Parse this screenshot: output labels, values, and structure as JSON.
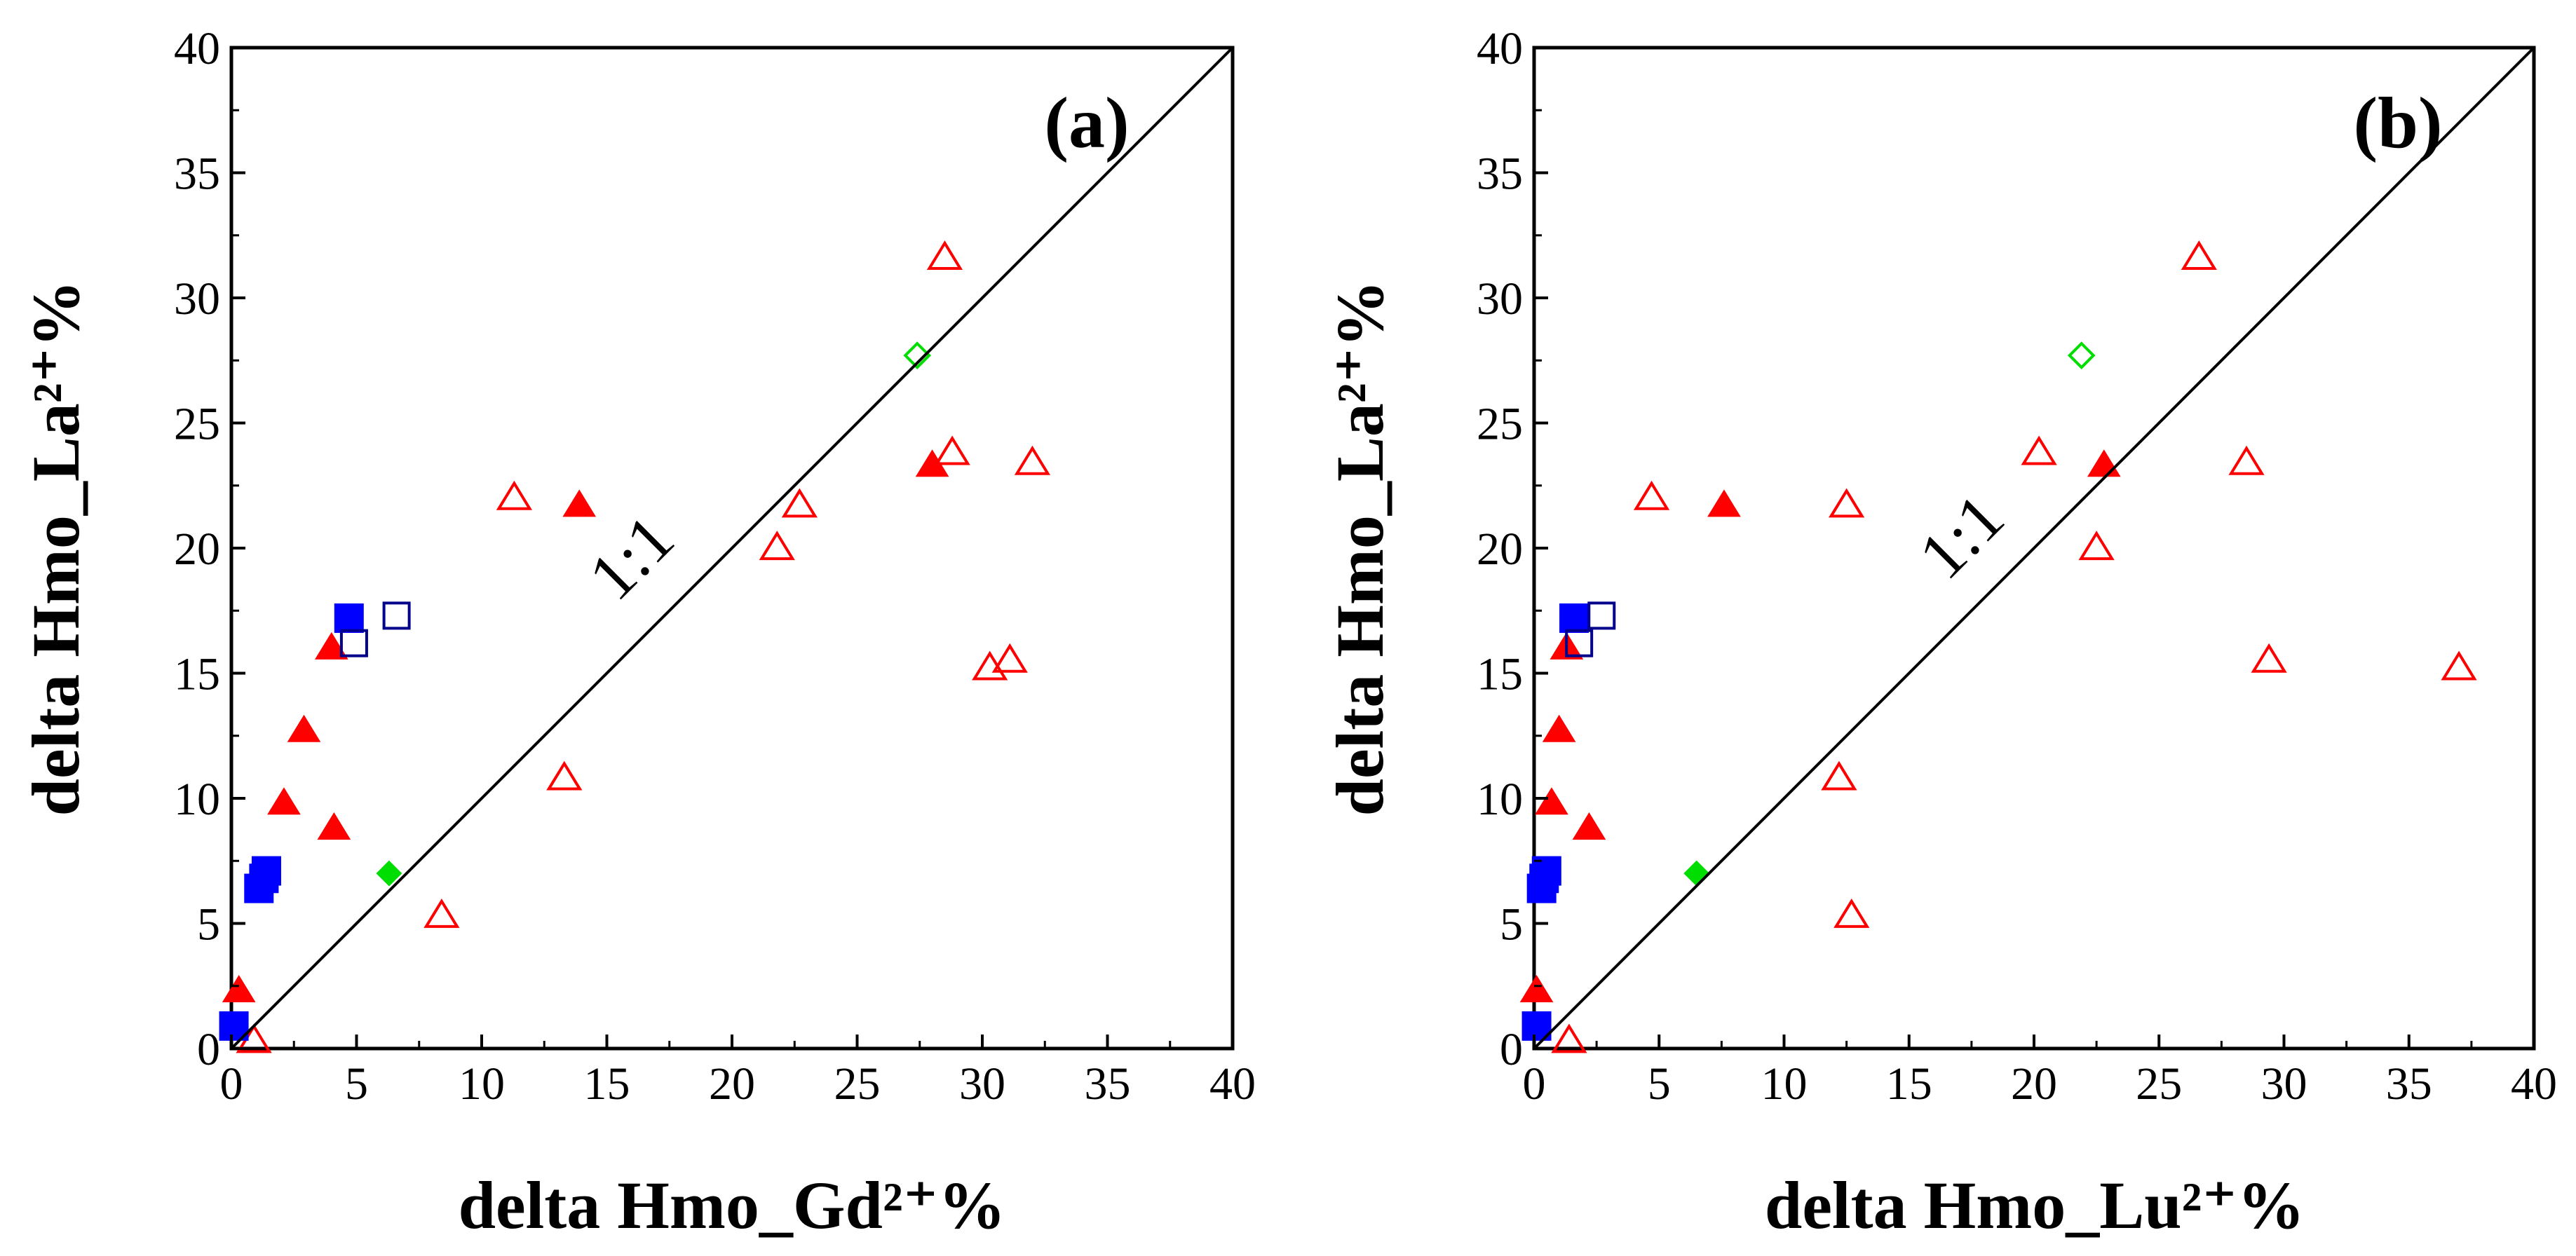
{
  "chart_data": [
    {
      "type": "scatter",
      "panel_label": "(a)",
      "xlabel": "delta Hmo_Gd²⁺%",
      "ylabel": "delta Hmo_La²⁺%",
      "xlim": [
        0,
        40
      ],
      "ylim": [
        0,
        40
      ],
      "xticks": [
        "0",
        "5",
        "10",
        "15",
        "20",
        "25",
        "30",
        "35",
        "40"
      ],
      "yticks": [
        "0",
        "5",
        "10",
        "15",
        "20",
        "25",
        "30",
        "35",
        "40"
      ],
      "reference_line": {
        "label": "1:1",
        "from": [
          0,
          0
        ],
        "to": [
          40,
          40
        ]
      },
      "series": [
        {
          "name": "filled-triangle",
          "marker": "triangle",
          "filled": true,
          "color": "#ff0000",
          "points": [
            [
              0.3,
              2.3
            ],
            [
              2.1,
              9.8
            ],
            [
              2.9,
              12.7
            ],
            [
              4.0,
              16.0
            ],
            [
              4.1,
              8.8
            ],
            [
              13.9,
              21.7
            ],
            [
              28.0,
              23.3
            ]
          ]
        },
        {
          "name": "open-triangle",
          "marker": "triangle",
          "filled": false,
          "color": "#ff0000",
          "points": [
            [
              0.9,
              0.3
            ],
            [
              8.4,
              5.3
            ],
            [
              11.3,
              22.0
            ],
            [
              13.3,
              10.8
            ],
            [
              21.8,
              20.0
            ],
            [
              22.7,
              21.7
            ],
            [
              28.5,
              31.6
            ],
            [
              28.8,
              23.8
            ],
            [
              30.3,
              15.2
            ],
            [
              31.1,
              15.5
            ],
            [
              32.0,
              23.4
            ]
          ]
        },
        {
          "name": "filled-square",
          "marker": "square",
          "filled": true,
          "color": "#0000ff",
          "points": [
            [
              0.1,
              0.9
            ],
            [
              1.1,
              6.4
            ],
            [
              1.3,
              6.8
            ],
            [
              1.4,
              7.1
            ],
            [
              4.7,
              17.2
            ]
          ]
        },
        {
          "name": "open-square",
          "marker": "square",
          "filled": false,
          "color": "#00008b",
          "points": [
            [
              4.9,
              16.2
            ],
            [
              6.6,
              17.3
            ]
          ]
        },
        {
          "name": "filled-diamond",
          "marker": "diamond",
          "filled": true,
          "color": "#00dd00",
          "points": [
            [
              6.3,
              7.0
            ]
          ]
        },
        {
          "name": "open-diamond",
          "marker": "diamond",
          "filled": false,
          "color": "#00dd00",
          "points": [
            [
              27.4,
              27.7
            ]
          ]
        }
      ]
    },
    {
      "type": "scatter",
      "panel_label": "(b)",
      "xlabel": "delta Hmo_Lu²⁺%",
      "ylabel": "delta Hmo_La²⁺%",
      "xlim": [
        0,
        40
      ],
      "ylim": [
        0,
        40
      ],
      "xticks": [
        "0",
        "5",
        "10",
        "15",
        "20",
        "25",
        "30",
        "35",
        "40"
      ],
      "yticks": [
        "0",
        "5",
        "10",
        "15",
        "20",
        "25",
        "30",
        "35",
        "40"
      ],
      "reference_line": {
        "label": "1:1",
        "from": [
          0,
          0
        ],
        "to": [
          40,
          40
        ]
      },
      "series": [
        {
          "name": "filled-triangle",
          "marker": "triangle",
          "filled": true,
          "color": "#ff0000",
          "points": [
            [
              0.1,
              2.3
            ],
            [
              0.7,
              9.8
            ],
            [
              1.0,
              12.7
            ],
            [
              1.3,
              16.0
            ],
            [
              2.2,
              8.8
            ],
            [
              7.6,
              21.7
            ],
            [
              22.8,
              23.3
            ]
          ]
        },
        {
          "name": "open-triangle",
          "marker": "triangle",
          "filled": false,
          "color": "#ff0000",
          "points": [
            [
              1.4,
              0.3
            ],
            [
              4.7,
              22.0
            ],
            [
              12.2,
              10.8
            ],
            [
              12.5,
              21.7
            ],
            [
              12.7,
              5.3
            ],
            [
              20.2,
              23.8
            ],
            [
              22.5,
              20.0
            ],
            [
              26.6,
              31.6
            ],
            [
              28.5,
              23.4
            ],
            [
              29.4,
              15.5
            ],
            [
              37.0,
              15.2
            ]
          ]
        },
        {
          "name": "filled-square",
          "marker": "square",
          "filled": true,
          "color": "#0000ff",
          "points": [
            [
              0.1,
              0.9
            ],
            [
              0.3,
              6.4
            ],
            [
              0.4,
              6.8
            ],
            [
              0.5,
              7.1
            ],
            [
              1.6,
              17.2
            ]
          ]
        },
        {
          "name": "open-square",
          "marker": "square",
          "filled": false,
          "color": "#00008b",
          "points": [
            [
              1.8,
              16.2
            ],
            [
              2.7,
              17.3
            ]
          ]
        },
        {
          "name": "filled-diamond",
          "marker": "diamond",
          "filled": true,
          "color": "#00dd00",
          "points": [
            [
              6.5,
              7.0
            ]
          ]
        },
        {
          "name": "open-diamond",
          "marker": "diamond",
          "filled": false,
          "color": "#00dd00",
          "points": [
            [
              21.9,
              27.7
            ]
          ]
        }
      ]
    }
  ]
}
